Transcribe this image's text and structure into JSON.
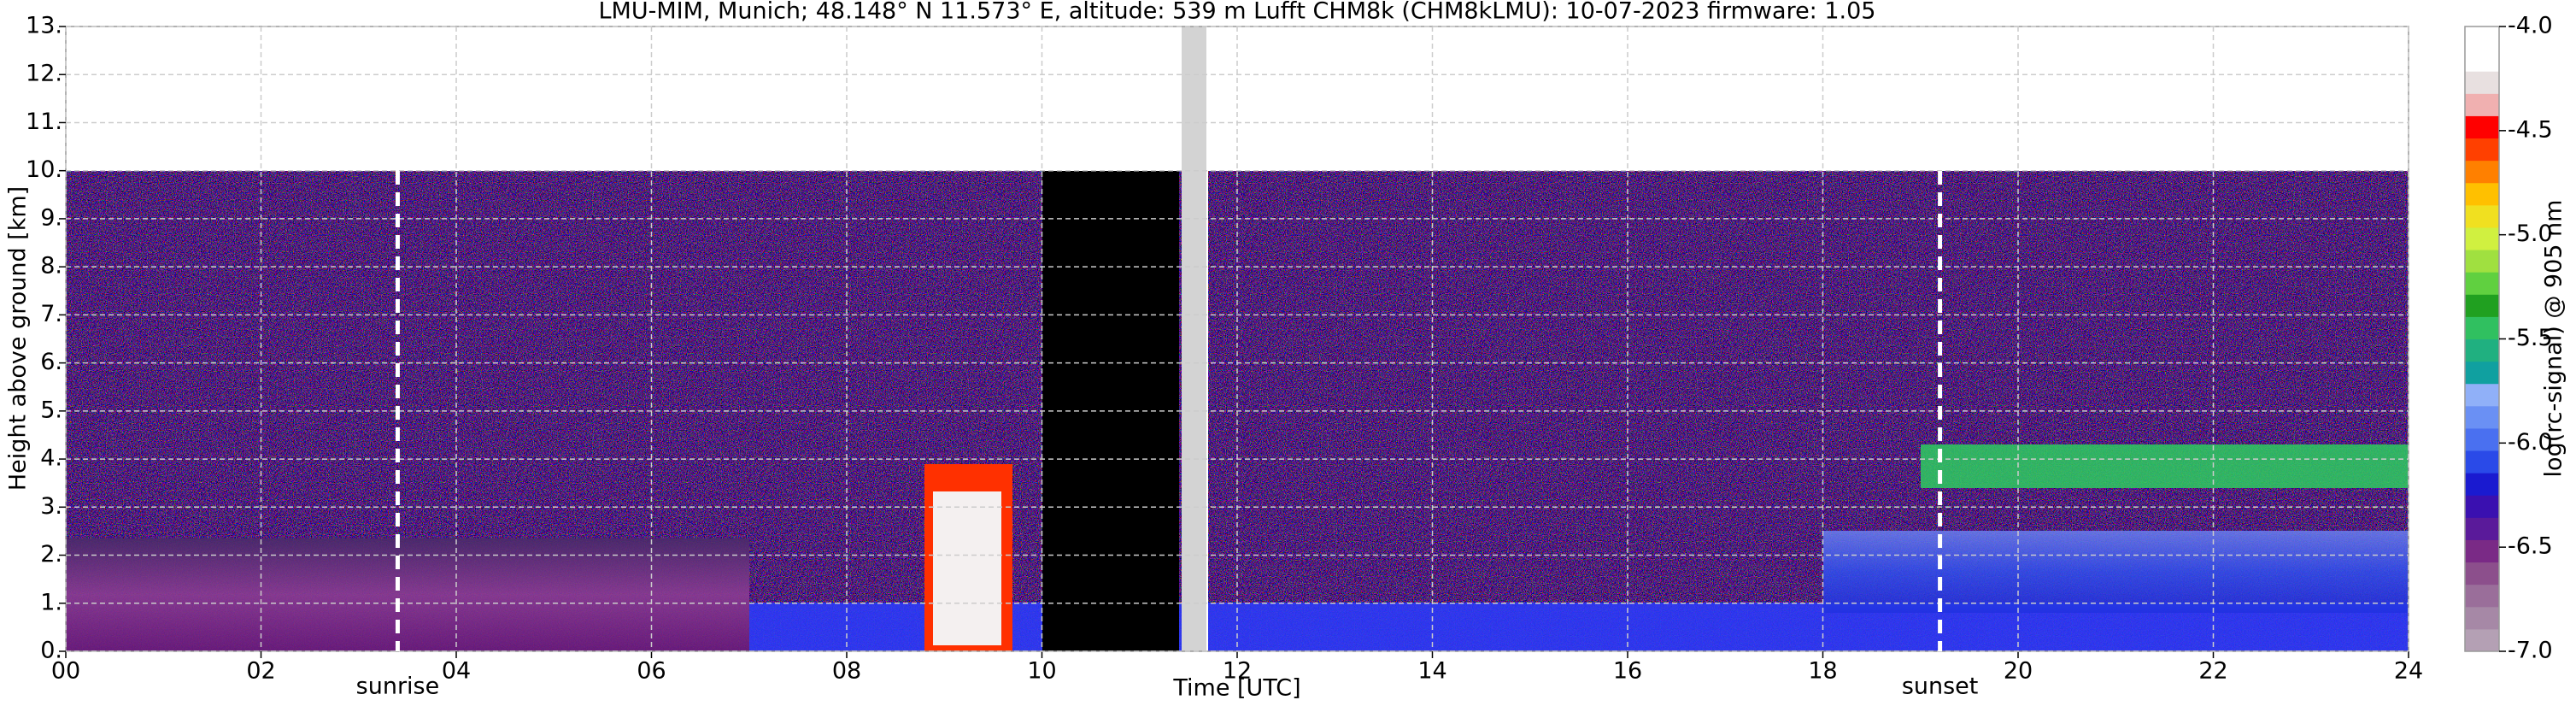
{
  "chart_data": {
    "type": "heatmap",
    "title": "LMU-MIM, Munich; 48.148° N 11.573° E, altitude: 539 m    Lufft CHM8k (CHM8kLMU): 10-07-2023    firmware: 1.05",
    "xlabel": "Time [UTC]",
    "ylabel": "Height above ground [km]",
    "xlim": [
      0,
      24
    ],
    "xticks": [
      {
        "value": 0,
        "label": "00"
      },
      {
        "value": 2,
        "label": "02"
      },
      {
        "value": 4,
        "label": "04"
      },
      {
        "value": 6,
        "label": "06"
      },
      {
        "value": 8,
        "label": "08"
      },
      10,
      12,
      14,
      16,
      18,
      20,
      22,
      24
    ],
    "ylim": [
      0,
      13
    ],
    "yticks": [
      {
        "value": 0,
        "label": "0."
      },
      {
        "value": 1,
        "label": "1."
      },
      {
        "value": 2,
        "label": "2."
      },
      {
        "value": 3,
        "label": "3."
      },
      {
        "value": 4,
        "label": "4."
      },
      {
        "value": 5,
        "label": "5."
      },
      {
        "value": 6,
        "label": "6."
      },
      {
        "value": 7,
        "label": "7."
      },
      {
        "value": 8,
        "label": "8."
      },
      {
        "value": 9,
        "label": "9."
      },
      {
        "value": 10,
        "label": "10."
      },
      {
        "value": 11,
        "label": "11."
      },
      {
        "value": 12,
        "label": "12."
      },
      {
        "value": 13,
        "label": "13."
      }
    ],
    "grid": true,
    "annotations": [
      {
        "text": "sunrise",
        "x": 3.4
      },
      {
        "text": "sunset",
        "x": 19.2
      }
    ],
    "colorbar": {
      "label": "log(rc-signal) @ 905 nm",
      "clim": [
        -7,
        -4
      ],
      "ticks": [
        {
          "value": -4,
          "label": "-4.0"
        },
        -4.5,
        {
          "value": -5,
          "label": "-5.0"
        },
        -5.5,
        {
          "value": -6,
          "label": "-6.0"
        },
        -6.5,
        {
          "value": -7,
          "label": "-7.0"
        }
      ],
      "colors": [
        "#b4a0b4",
        "#a688a6",
        "#9a6e9a",
        "#8c4f8c",
        "#7a2a86",
        "#5a1a9a",
        "#3a10b0",
        "#1a1ad0",
        "#2a4ae8",
        "#4a70f0",
        "#6a90f4",
        "#90b0f8",
        "#10a0a0",
        "#20b080",
        "#30c060",
        "#20a020",
        "#60d040",
        "#a0e040",
        "#d0f040",
        "#f0e020",
        "#ffc000",
        "#ff8000",
        "#ff4000",
        "#ff0000",
        "#f0b0b0",
        "#e8e0e0",
        "#ffffff",
        "#ffffff"
      ]
    }
  }
}
